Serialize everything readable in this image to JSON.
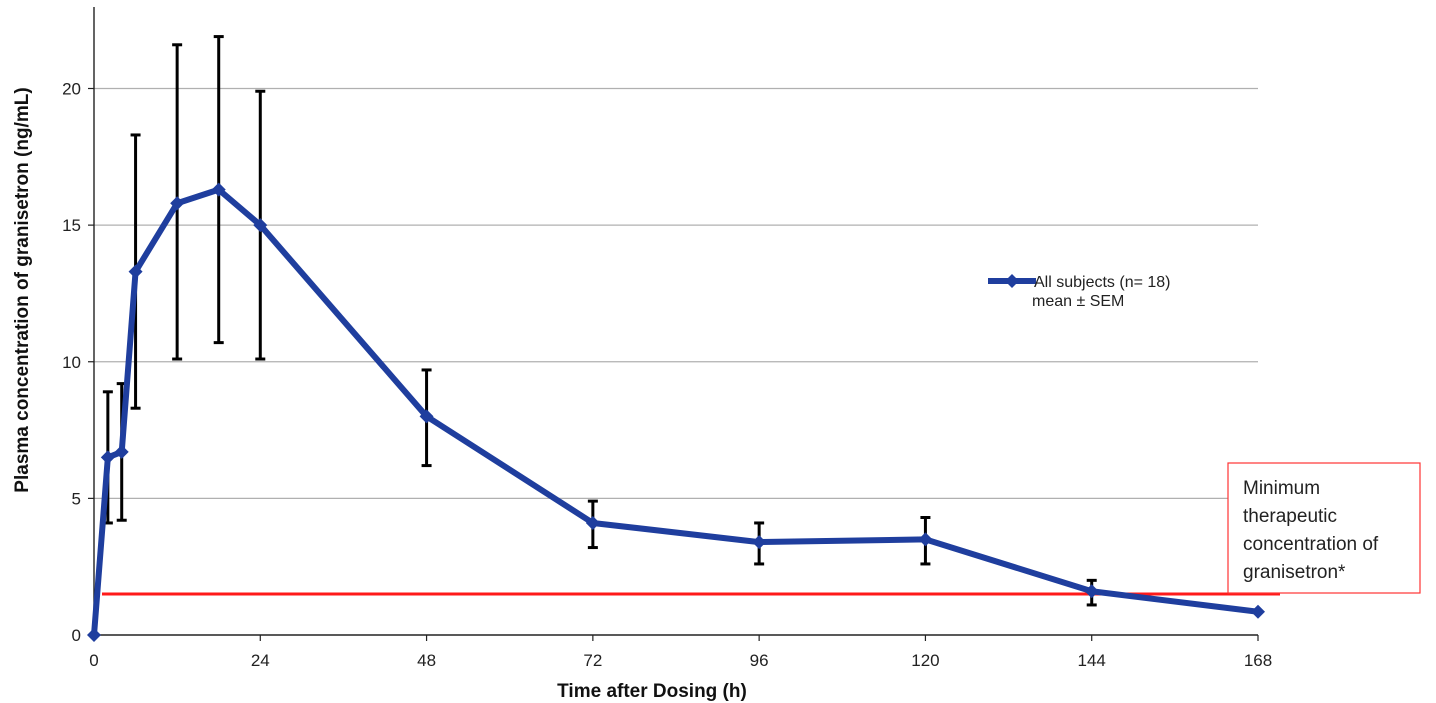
{
  "chart_data": {
    "type": "line",
    "title": "",
    "xlabel": "Time after Dosing (h)",
    "ylabel": "Plasma concentration of granisetron (ng/mL)",
    "xlim": [
      0,
      168
    ],
    "ylim": [
      0,
      22.5
    ],
    "xticks": [
      0,
      24,
      48,
      72,
      96,
      120,
      144,
      168
    ],
    "yticks": [
      0,
      5,
      10,
      15,
      20
    ],
    "xtick_labels": [
      "0",
      "24",
      "48",
      "72",
      "96",
      "120",
      "144",
      "168"
    ],
    "ytick_labels": [
      "0",
      "5",
      "10",
      "15",
      "20"
    ],
    "grid": "horizontal",
    "legend_position": "right",
    "series": [
      {
        "name": "All subjects (n= 18)",
        "name_line2": "mean ± SEM",
        "color": "#1f3e9e",
        "x": [
          0,
          2,
          4,
          6,
          12,
          18,
          24,
          48,
          72,
          96,
          120,
          144,
          168
        ],
        "y": [
          0,
          6.5,
          6.7,
          13.3,
          15.8,
          16.3,
          15.0,
          8.0,
          4.1,
          3.4,
          3.5,
          1.6,
          0.85
        ],
        "error_low": [
          null,
          4.1,
          4.2,
          8.3,
          10.1,
          10.7,
          10.1,
          6.2,
          3.2,
          2.6,
          2.6,
          1.1,
          null
        ],
        "error_high": [
          null,
          8.9,
          9.2,
          18.3,
          21.6,
          21.9,
          19.9,
          9.7,
          4.9,
          4.1,
          4.3,
          2.0,
          null
        ]
      }
    ],
    "reference_line": {
      "y": 1.5,
      "color": "#ff1a1a",
      "label": "Minimum therapeutic concentration of granisetron*"
    },
    "annotation_lines": [
      "Minimum",
      "therapeutic",
      "concentration of",
      "granisetron*"
    ]
  }
}
